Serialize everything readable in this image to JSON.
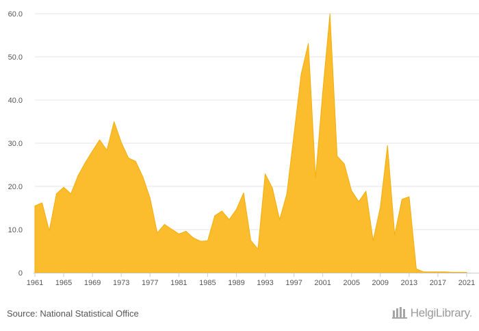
{
  "chart_data": {
    "type": "area",
    "title": "",
    "xlabel": "",
    "ylabel": "",
    "x": [
      1961,
      1962,
      1963,
      1964,
      1965,
      1966,
      1967,
      1968,
      1969,
      1970,
      1971,
      1972,
      1973,
      1974,
      1975,
      1976,
      1977,
      1978,
      1979,
      1980,
      1981,
      1982,
      1983,
      1984,
      1985,
      1986,
      1987,
      1988,
      1989,
      1990,
      1991,
      1992,
      1993,
      1994,
      1995,
      1996,
      1997,
      1998,
      1999,
      2000,
      2001,
      2002,
      2003,
      2004,
      2005,
      2006,
      2007,
      2008,
      2009,
      2010,
      2011,
      2012,
      2013,
      2014,
      2015,
      2016,
      2017,
      2018,
      2019,
      2020,
      2021
    ],
    "series": [
      {
        "values": [
          15.5,
          16.2,
          9.7,
          18.3,
          19.8,
          18.3,
          22.5,
          25.5,
          28.2,
          30.8,
          28.4,
          35.0,
          30.2,
          26.6,
          25.8,
          22.2,
          17.3,
          9.2,
          11.2,
          10.1,
          9.0,
          9.6,
          8.1,
          7.3,
          7.4,
          13.2,
          14.3,
          12.3,
          14.7,
          18.5,
          7.5,
          5.5,
          22.9,
          19.6,
          12.3,
          18.2,
          32.0,
          46.0,
          53.1,
          22.0,
          42.0,
          60.0,
          27.0,
          25.2,
          19.0,
          16.5,
          18.9,
          7.5,
          15.2,
          29.5,
          8.8,
          17.0,
          17.6,
          0.9,
          0.2,
          0.2,
          0.2,
          0.2,
          0.1,
          0.1,
          0.1
        ]
      }
    ],
    "xticks": [
      "1961",
      "1965",
      "1969",
      "1973",
      "1977",
      "1981",
      "1985",
      "1989",
      "1993",
      "1997",
      "2001",
      "2005",
      "2009",
      "2013",
      "2017",
      "2021"
    ],
    "yticks": [
      "0",
      "10.0",
      "20.0",
      "30.0",
      "40.0",
      "50.0",
      "60.0"
    ],
    "ylim": [
      0,
      60
    ],
    "xlim": [
      1961,
      2021
    ],
    "grid": true,
    "legend": "none",
    "colors": {
      "fill": "#fbbd2d",
      "stroke": "#f2ae0e"
    }
  },
  "footer": {
    "source": "Source: National Statistical Office",
    "brand_name": "HelgiLibrary",
    "brand_dot": "."
  }
}
